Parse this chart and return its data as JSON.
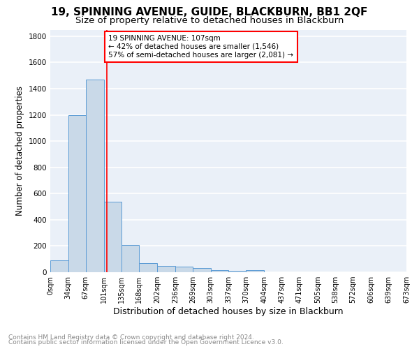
{
  "title": "19, SPINNING AVENUE, GUIDE, BLACKBURN, BB1 2QF",
  "subtitle": "Size of property relative to detached houses in Blackburn",
  "xlabel": "Distribution of detached houses by size in Blackburn",
  "ylabel": "Number of detached properties",
  "footnote1": "Contains HM Land Registry data © Crown copyright and database right 2024.",
  "footnote2": "Contains public sector information licensed under the Open Government Licence v3.0.",
  "bar_edges": [
    0,
    34,
    67,
    101,
    135,
    168,
    202,
    236,
    269,
    303,
    337,
    370,
    404,
    437,
    471,
    505,
    538,
    572,
    606,
    639,
    673
  ],
  "bar_heights": [
    90,
    1200,
    1470,
    540,
    205,
    70,
    50,
    40,
    30,
    15,
    10,
    15,
    0,
    0,
    0,
    0,
    0,
    0,
    0,
    0
  ],
  "bar_color": "#c9d9e8",
  "bar_edgecolor": "#5b9bd5",
  "ylim": [
    0,
    1850
  ],
  "yticks": [
    0,
    200,
    400,
    600,
    800,
    1000,
    1200,
    1400,
    1600,
    1800
  ],
  "property_size": 107,
  "vline_x": 107,
  "vline_color": "red",
  "annotation_text": "19 SPINNING AVENUE: 107sqm\n← 42% of detached houses are smaller (1,546)\n57% of semi-detached houses are larger (2,081) →",
  "annotation_box_color": "white",
  "annotation_box_edgecolor": "red",
  "tick_labels": [
    "0sqm",
    "34sqm",
    "67sqm",
    "101sqm",
    "135sqm",
    "168sqm",
    "202sqm",
    "236sqm",
    "269sqm",
    "303sqm",
    "337sqm",
    "370sqm",
    "404sqm",
    "437sqm",
    "471sqm",
    "505sqm",
    "538sqm",
    "572sqm",
    "606sqm",
    "639sqm",
    "673sqm"
  ],
  "bg_color": "#eaf0f8",
  "grid_color": "white",
  "title_fontsize": 11,
  "subtitle_fontsize": 9.5,
  "ylabel_fontsize": 8.5,
  "xlabel_fontsize": 9,
  "tick_fontsize": 7,
  "annotation_fontsize": 7.5,
  "footnote_fontsize": 6.5
}
